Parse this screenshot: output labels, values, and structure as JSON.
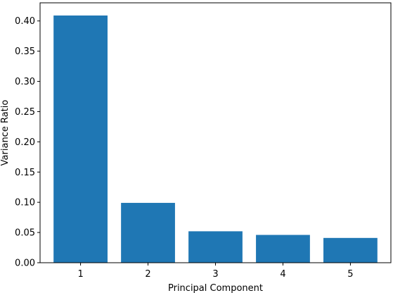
{
  "chart_data": {
    "type": "bar",
    "title": "",
    "xlabel": "Principal Component",
    "ylabel": "Variance Ratio",
    "categories": [
      "1",
      "2",
      "3",
      "4",
      "5"
    ],
    "values": [
      0.409,
      0.099,
      0.052,
      0.046,
      0.041
    ],
    "ylim": [
      0,
      0.43
    ],
    "yticks": [
      0.0,
      0.05,
      0.1,
      0.15,
      0.2,
      0.25,
      0.3,
      0.35,
      0.4
    ],
    "ytick_labels": [
      "0.00",
      "0.05",
      "0.10",
      "0.15",
      "0.20",
      "0.25",
      "0.30",
      "0.35",
      "0.40"
    ],
    "grid": false,
    "bar_color": "#1f77b4"
  }
}
